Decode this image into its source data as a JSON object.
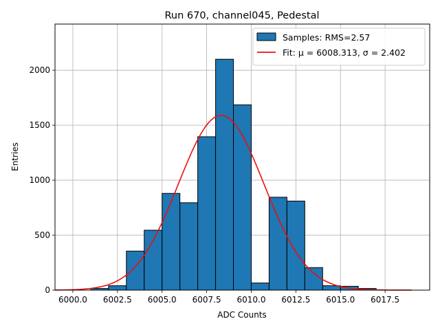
{
  "chart_data": {
    "type": "bar",
    "title": "Run 670, channel045, Pedestal",
    "xlabel": "ADC Counts",
    "ylabel": "Entries",
    "xlim": [
      5999,
      6020
    ],
    "ylim": [
      0,
      2420
    ],
    "xticks": [
      6000.0,
      6002.5,
      6005.0,
      6007.5,
      6010.0,
      6012.5,
      6015.0,
      6017.5
    ],
    "xtick_labels": [
      "6000.0",
      "6002.5",
      "6005.0",
      "6007.5",
      "6010.0",
      "6012.5",
      "6015.0",
      "6017.5"
    ],
    "yticks": [
      0,
      500,
      1000,
      1500,
      2000
    ],
    "ytick_labels": [
      "0",
      "500",
      "1000",
      "1500",
      "2000"
    ],
    "grid": true,
    "legend_position": "top-right",
    "bin_width": 1,
    "bins": [
      {
        "start": 6001,
        "value": 15
      },
      {
        "start": 6002,
        "value": 40
      },
      {
        "start": 6003,
        "value": 355
      },
      {
        "start": 6004,
        "value": 545
      },
      {
        "start": 6005,
        "value": 880
      },
      {
        "start": 6006,
        "value": 795
      },
      {
        "start": 6007,
        "value": 1395
      },
      {
        "start": 6008,
        "value": 2100
      },
      {
        "start": 6009,
        "value": 1685
      },
      {
        "start": 6010,
        "value": 65
      },
      {
        "start": 6011,
        "value": 845
      },
      {
        "start": 6012,
        "value": 810
      },
      {
        "start": 6013,
        "value": 205
      },
      {
        "start": 6014,
        "value": 40
      },
      {
        "start": 6015,
        "value": 35
      },
      {
        "start": 6016,
        "value": 15
      }
    ],
    "fit": {
      "mu": 6008.313,
      "sigma": 2.402,
      "amplitude": 1590,
      "x_range": [
        5999,
        6019
      ]
    },
    "series": [
      {
        "name": "Samples: RMS=2.57",
        "color": "#1f77b4",
        "kind": "histogram"
      },
      {
        "name": "Fit: μ = 6008.313, σ = 2.402",
        "color": "#e8100f",
        "kind": "line"
      }
    ]
  }
}
